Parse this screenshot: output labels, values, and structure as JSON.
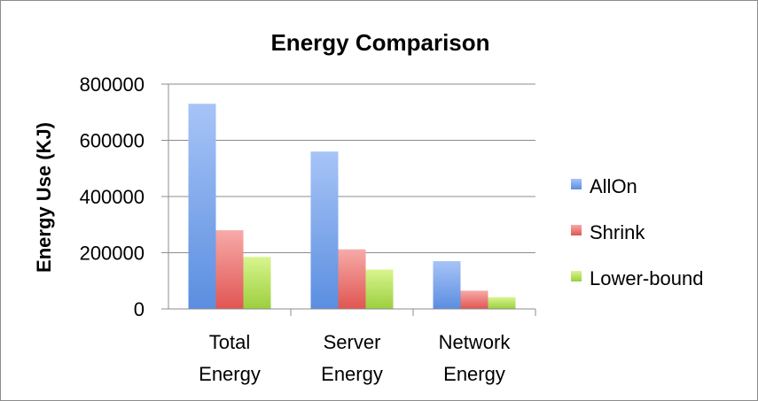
{
  "chart_data": {
    "type": "bar",
    "title": "Energy Comparison",
    "xlabel": "",
    "ylabel": "Energy Use (KJ)",
    "ylim": [
      0,
      800000
    ],
    "yticks": [
      "0",
      "200000",
      "400000",
      "600000",
      "800000"
    ],
    "categories": [
      [
        "Total",
        "Energy"
      ],
      [
        "Server",
        "Energy"
      ],
      [
        "Network",
        "Energy"
      ]
    ],
    "series": [
      {
        "name": "AllOn",
        "values": [
          730000,
          560000,
          170000
        ],
        "color": "#5b8ee0",
        "color_light": "#a7c4f7"
      },
      {
        "name": "Shrink",
        "values": [
          280000,
          212000,
          65000
        ],
        "color": "#e05552",
        "color_light": "#f7aaa8"
      },
      {
        "name": "Lower-bound",
        "values": [
          185000,
          140000,
          42000
        ],
        "color": "#9ccf3e",
        "color_light": "#d8f58e"
      }
    ],
    "grid": true,
    "legend": "right"
  }
}
